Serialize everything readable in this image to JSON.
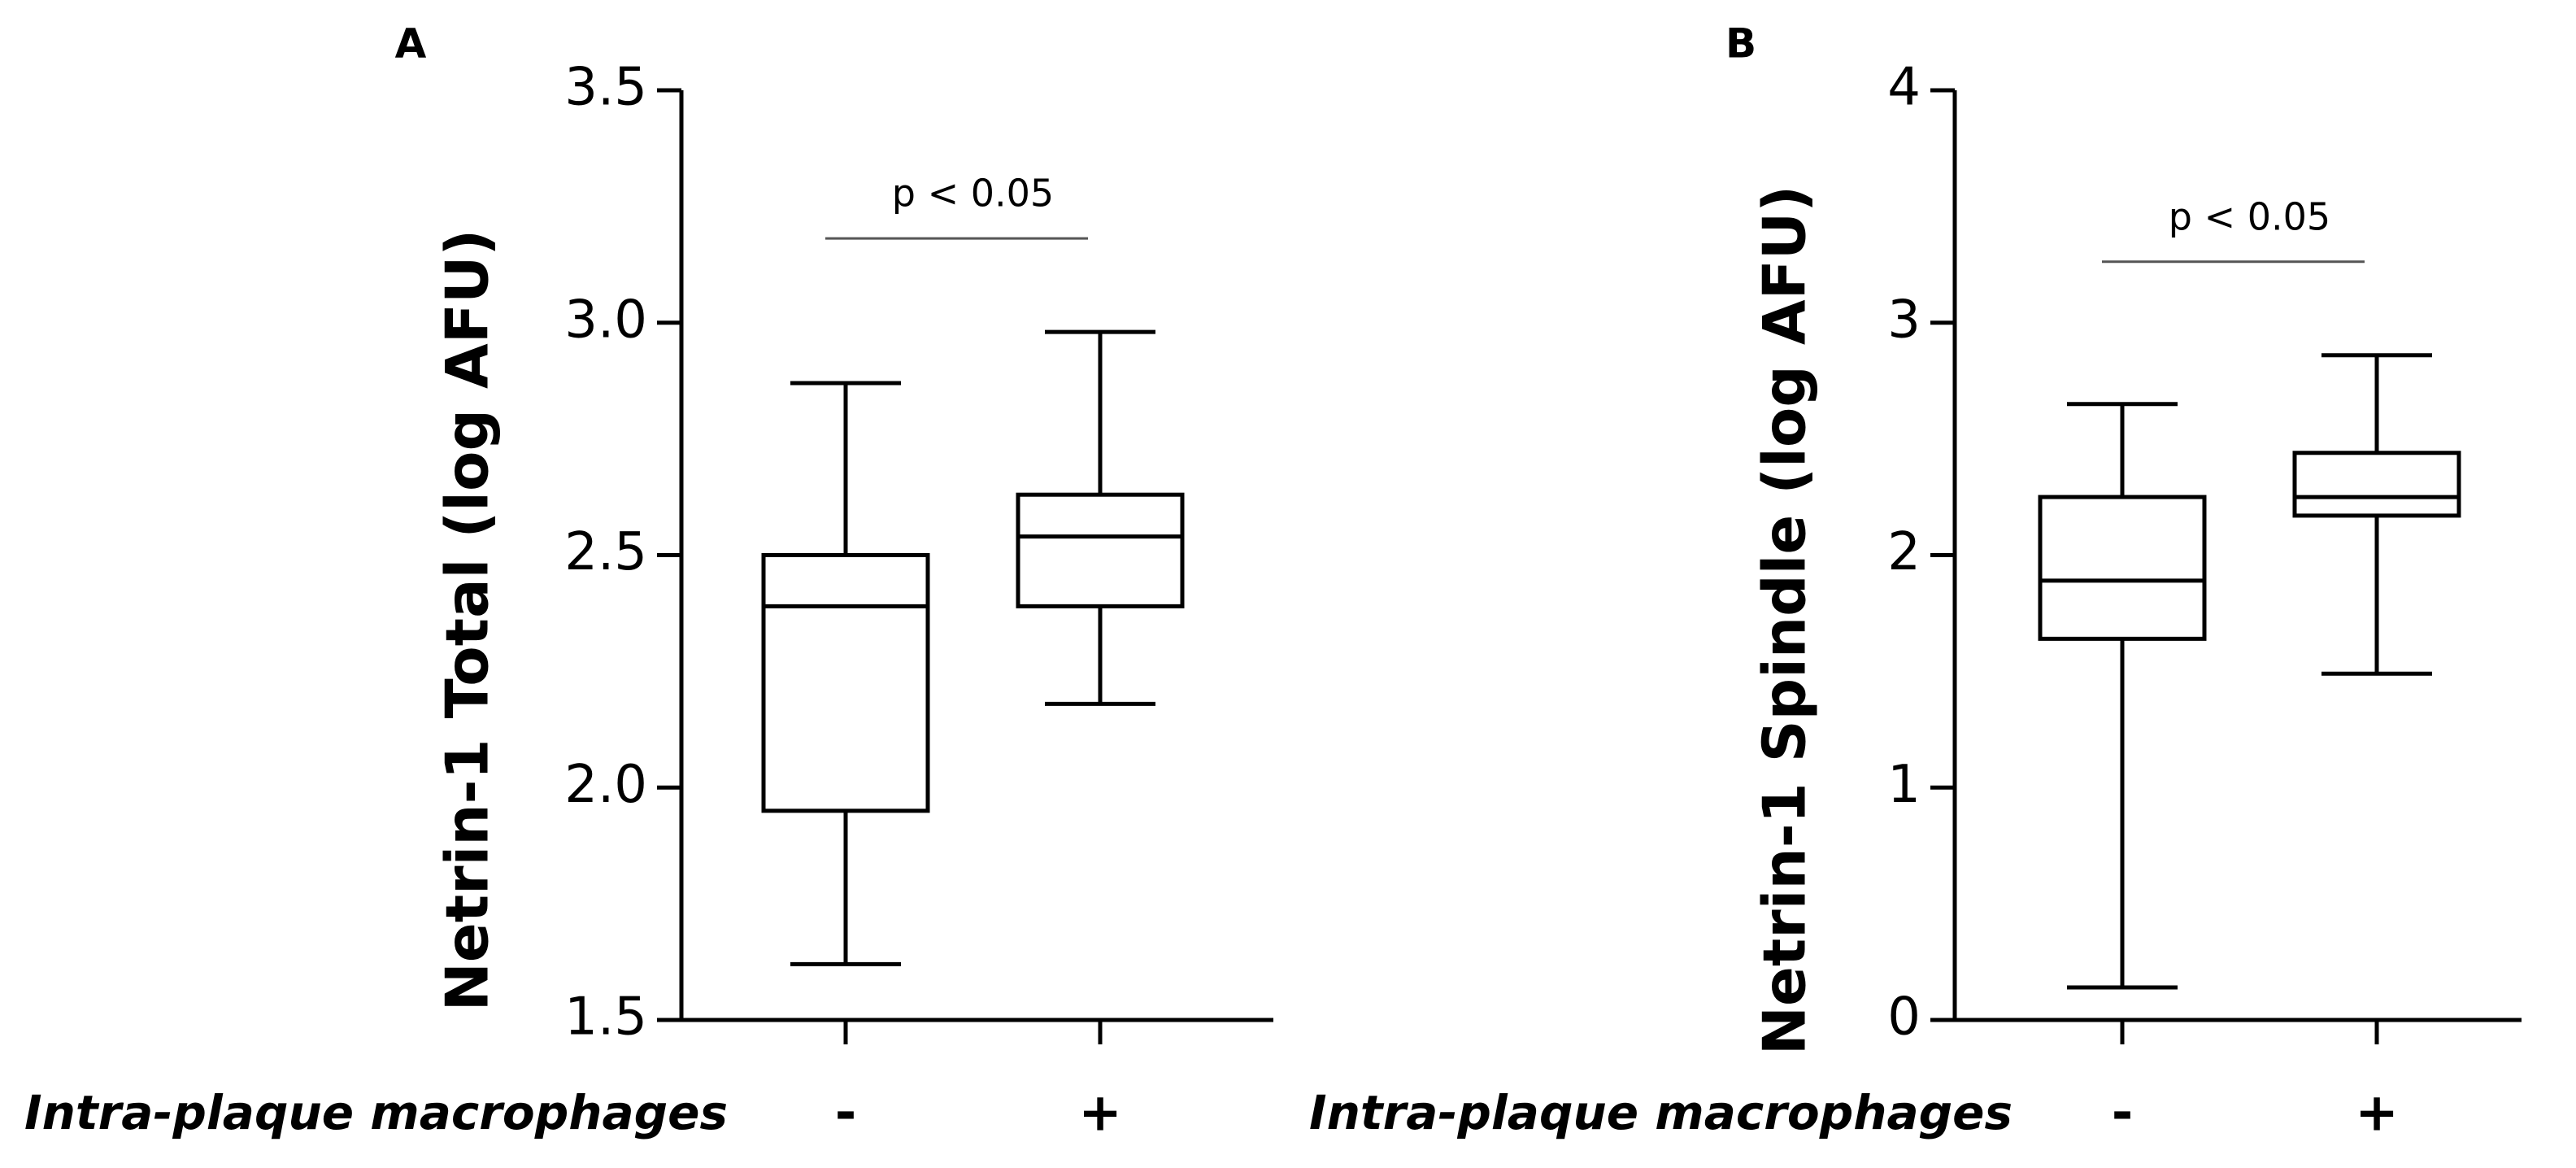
{
  "chart_data": [
    {
      "type": "box",
      "title": "A",
      "y_label": "Netrin-1 Total (log AFU)",
      "x_label": "Intra-plaque macrophages",
      "categories": [
        "-",
        "+"
      ],
      "values": [
        {
          "min": 1.62,
          "q1": 1.95,
          "median": 2.39,
          "q3": 2.5,
          "max": 2.87
        },
        {
          "min": 2.18,
          "q1": 2.39,
          "median": 2.54,
          "q3": 2.63,
          "max": 2.98
        }
      ],
      "color": "#000000",
      "ylim": [
        1.5,
        3.5
      ],
      "yticks": [
        1.5,
        {
          "value": 2,
          "label": "2.0"
        },
        2.5,
        {
          "value": 3,
          "label": "3.0"
        },
        3.5
      ],
      "annotation": "p < 0.05"
    },
    {
      "type": "box",
      "title": "B",
      "y_label": "Netrin-1 Spindle (log AFU)",
      "x_label": "Intra-plaque macrophages",
      "categories": [
        "-",
        "+"
      ],
      "values": [
        {
          "min": 0.14,
          "q1": 1.64,
          "median": 1.89,
          "q3": 2.25,
          "max": 2.65
        },
        {
          "min": 1.49,
          "q1": 2.17,
          "median": 2.25,
          "q3": 2.44,
          "max": 2.86
        }
      ],
      "color": "#000000",
      "ylim": [
        0,
        4
      ],
      "yticks": [
        0,
        1,
        2,
        3,
        4
      ],
      "annotation": "p < 0.05"
    }
  ]
}
